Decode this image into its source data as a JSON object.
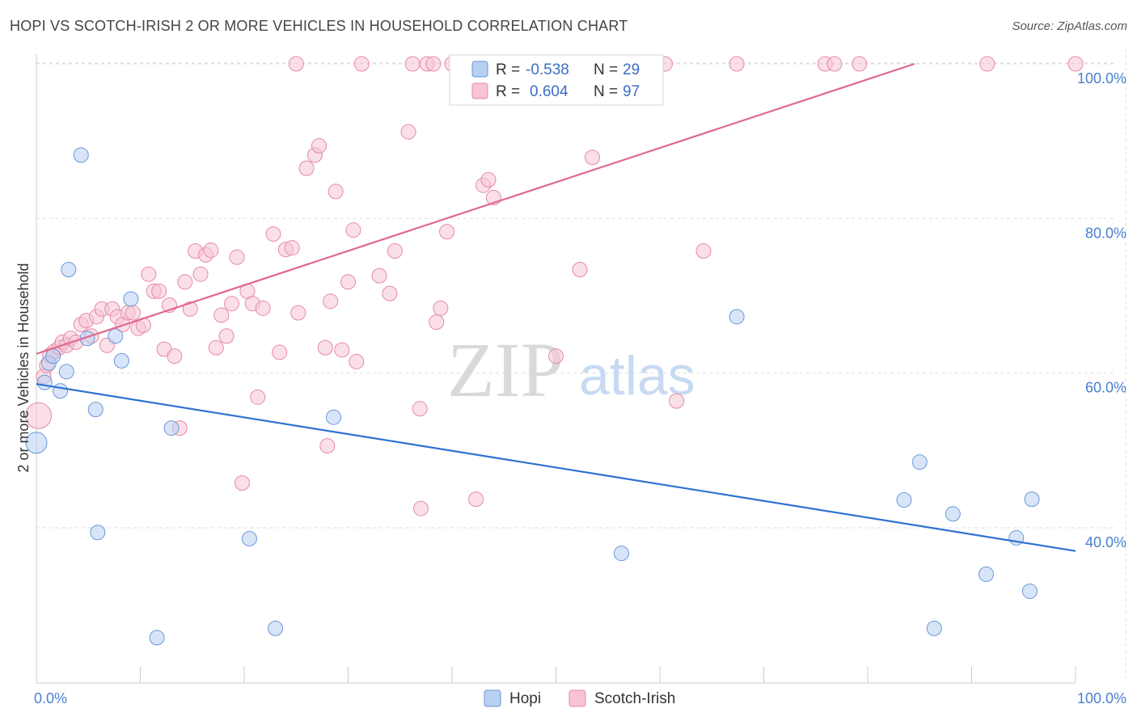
{
  "title": "HOPI VS SCOTCH-IRISH 2 OR MORE VEHICLES IN HOUSEHOLD CORRELATION CHART",
  "source": "Source: ZipAtlas.com",
  "watermark": {
    "zip": "ZIP",
    "atlas": "atlas"
  },
  "colors": {
    "hopi_fill": "#b8d0f2",
    "hopi_stroke": "#6a98d8",
    "hopi_line": "#2f72d2",
    "scotch_fill": "#f8c4d4",
    "scotch_stroke": "#e48aa8",
    "scotch_line": "#e06890",
    "grid": "#dddddd",
    "axis_label": "#4a7fd0"
  },
  "legend_box": {
    "rows": [
      {
        "r_label": "R = ",
        "r_value": "-0.538",
        "n_label": "N = ",
        "n_value": "29"
      },
      {
        "r_label": "R = ",
        "r_value": "0.604",
        "n_label": "N = ",
        "n_value": "97"
      }
    ]
  },
  "bottom_legend": [
    "Hopi",
    "Scotch-Irish"
  ],
  "chart_data": {
    "type": "scatter",
    "title": "HOPI VS SCOTCH-IRISH 2 OR MORE VEHICLES IN HOUSEHOLD CORRELATION CHART",
    "xlabel": "",
    "ylabel": "2 or more Vehicles in Household",
    "xlim": [
      0,
      100
    ],
    "ylim": [
      20,
      104
    ],
    "x_tick_labels": [
      "0.0%",
      "100.0%"
    ],
    "y_ticks": [
      40,
      60,
      80,
      100
    ],
    "y_tick_labels": [
      "40.0%",
      "60.0%",
      "80.0%",
      "100.0%"
    ],
    "grid": true,
    "series": [
      {
        "name": "Hopi",
        "r": -0.538,
        "n": 29,
        "trend": {
          "x": [
            0,
            100
          ],
          "y": [
            58.6,
            37.0
          ]
        },
        "points": [
          [
            0.0,
            51.0,
            13
          ],
          [
            0.8,
            58.8,
            9
          ],
          [
            1.2,
            61.3,
            9
          ],
          [
            1.6,
            62.2,
            9
          ],
          [
            2.3,
            57.7,
            9
          ],
          [
            2.9,
            60.2,
            9
          ],
          [
            3.1,
            73.4,
            9
          ],
          [
            4.3,
            88.2,
            9
          ],
          [
            5.7,
            55.3,
            9
          ],
          [
            5.9,
            39.4,
            9
          ],
          [
            4.9,
            64.5,
            9
          ],
          [
            7.6,
            64.8,
            9
          ],
          [
            8.2,
            61.6,
            9
          ],
          [
            9.1,
            69.6,
            9
          ],
          [
            11.6,
            25.8,
            9
          ],
          [
            13.0,
            52.9,
            9
          ],
          [
            20.5,
            38.6,
            9
          ],
          [
            23.0,
            27.0,
            9
          ],
          [
            28.6,
            54.3,
            9
          ],
          [
            56.3,
            36.7,
            9
          ],
          [
            67.4,
            67.3,
            9
          ],
          [
            83.5,
            43.6,
            9
          ],
          [
            85.0,
            48.5,
            9
          ],
          [
            86.4,
            27.0,
            9
          ],
          [
            88.2,
            41.8,
            9
          ],
          [
            91.4,
            34.0,
            9
          ],
          [
            94.3,
            38.7,
            9
          ],
          [
            95.6,
            31.8,
            9
          ],
          [
            95.8,
            43.7,
            9
          ]
        ]
      },
      {
        "name": "Scotch-Irish",
        "r": 0.604,
        "n": 97,
        "trend": {
          "x": [
            0,
            84.5
          ],
          "y": [
            62.5,
            100.0
          ]
        },
        "points": [
          [
            0.2,
            54.5,
            16
          ],
          [
            0.7,
            59.6,
            9
          ],
          [
            1.0,
            61.0,
            9
          ],
          [
            1.3,
            62.3,
            9
          ],
          [
            1.7,
            62.8,
            9
          ],
          [
            2.2,
            63.3,
            9
          ],
          [
            2.5,
            64.0,
            9
          ],
          [
            2.9,
            63.6,
            9
          ],
          [
            3.3,
            64.5,
            9
          ],
          [
            3.8,
            64.0,
            9
          ],
          [
            4.3,
            66.3,
            9
          ],
          [
            4.8,
            66.8,
            9
          ],
          [
            5.3,
            64.8,
            9
          ],
          [
            5.8,
            67.3,
            9
          ],
          [
            6.3,
            68.3,
            9
          ],
          [
            6.8,
            63.6,
            9
          ],
          [
            7.3,
            68.3,
            9
          ],
          [
            7.8,
            67.3,
            9
          ],
          [
            8.3,
            66.3,
            9
          ],
          [
            8.8,
            67.8,
            9
          ],
          [
            9.3,
            67.8,
            9
          ],
          [
            9.8,
            65.8,
            9
          ],
          [
            10.3,
            66.2,
            9
          ],
          [
            10.8,
            72.8,
            9
          ],
          [
            11.3,
            70.6,
            9
          ],
          [
            11.8,
            70.6,
            9
          ],
          [
            12.3,
            63.1,
            9
          ],
          [
            12.8,
            68.8,
            9
          ],
          [
            13.3,
            62.2,
            9
          ],
          [
            13.8,
            52.9,
            9
          ],
          [
            14.3,
            71.8,
            9
          ],
          [
            14.8,
            68.3,
            9
          ],
          [
            15.3,
            75.8,
            9
          ],
          [
            15.8,
            72.8,
            9
          ],
          [
            16.3,
            75.3,
            9
          ],
          [
            16.8,
            75.9,
            9
          ],
          [
            17.3,
            63.3,
            9
          ],
          [
            17.8,
            67.5,
            9
          ],
          [
            18.3,
            64.8,
            9
          ],
          [
            18.8,
            69.0,
            9
          ],
          [
            19.3,
            75.0,
            9
          ],
          [
            19.8,
            45.8,
            9
          ],
          [
            20.3,
            70.6,
            9
          ],
          [
            20.8,
            69.0,
            9
          ],
          [
            21.3,
            56.9,
            9
          ],
          [
            21.8,
            68.4,
            9
          ],
          [
            22.8,
            78.0,
            9
          ],
          [
            23.4,
            62.7,
            9
          ],
          [
            24.0,
            76.0,
            9
          ],
          [
            24.6,
            76.2,
            9
          ],
          [
            25.2,
            67.8,
            9
          ],
          [
            26.0,
            86.5,
            9
          ],
          [
            26.8,
            88.2,
            9
          ],
          [
            27.2,
            89.4,
            9
          ],
          [
            27.8,
            63.3,
            9
          ],
          [
            28.0,
            50.6,
            9
          ],
          [
            28.3,
            69.3,
            9
          ],
          [
            28.8,
            83.5,
            9
          ],
          [
            29.4,
            63.0,
            9
          ],
          [
            30.0,
            71.8,
            9
          ],
          [
            30.5,
            78.5,
            9
          ],
          [
            30.8,
            61.5,
            9
          ],
          [
            31.3,
            100.0,
            9
          ],
          [
            33.0,
            72.6,
            9
          ],
          [
            34.0,
            70.3,
            9
          ],
          [
            34.5,
            75.8,
            9
          ],
          [
            35.8,
            91.2,
            9
          ],
          [
            36.2,
            100.0,
            9
          ],
          [
            36.9,
            55.4,
            9
          ],
          [
            37.0,
            42.5,
            9
          ],
          [
            37.6,
            100.0,
            9
          ],
          [
            38.2,
            100.0,
            9
          ],
          [
            38.5,
            66.6,
            9
          ],
          [
            38.9,
            68.4,
            9
          ],
          [
            39.5,
            78.3,
            9
          ],
          [
            40.0,
            100.0,
            9
          ],
          [
            42.5,
            100.0,
            9
          ],
          [
            42.3,
            43.7,
            9
          ],
          [
            43.0,
            84.3,
            9
          ],
          [
            43.5,
            85.0,
            9
          ],
          [
            44.0,
            82.7,
            9
          ],
          [
            48.7,
            100.0,
            9
          ],
          [
            50.0,
            62.2,
            9
          ],
          [
            52.3,
            73.4,
            9
          ],
          [
            53.5,
            87.9,
            9
          ],
          [
            56.5,
            100.0,
            9
          ],
          [
            60.5,
            100.0,
            9
          ],
          [
            61.6,
            56.4,
            9
          ],
          [
            64.2,
            75.8,
            9
          ],
          [
            67.4,
            100.0,
            9
          ],
          [
            75.9,
            100.0,
            9
          ],
          [
            76.8,
            100.0,
            9
          ],
          [
            79.2,
            100.0,
            9
          ],
          [
            91.5,
            100.0,
            9
          ],
          [
            100.0,
            100.0,
            9
          ],
          [
            25.0,
            100.0,
            9
          ],
          [
            55.5,
            100.0,
            9
          ]
        ]
      }
    ]
  }
}
